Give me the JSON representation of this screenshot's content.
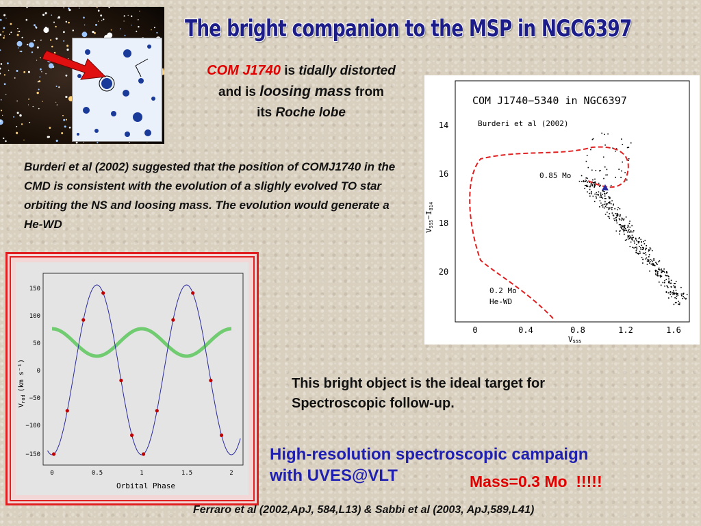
{
  "title": "The bright companion to the MSP in NGC6397",
  "subtitle": {
    "name": "COM J1740",
    "is1": "is",
    "distorted": "tidally distorted",
    "and_is": "and is",
    "loosing": "loosing mass",
    "from": "from",
    "its": "its",
    "lobe": "Roche lobe"
  },
  "paragraph": "Burderi et al (2002) suggested that  the position of  COMJ1740 in the CMD is consistent with the evolution of a slighly evolved TO star orbiting the NS and loosing mass. The evolution would generate a He-WD",
  "cmd_plot": {
    "title": "COM J1740−5340 in NGC6397",
    "reference": "Burderi et al (2002)",
    "label_085": "0.85 Mo",
    "label_02": "0.2 Mo",
    "label_hewd": "He-WD",
    "xlabel": "V",
    "xlabel_sub": "555",
    "ylabel": "V",
    "ylabel_sub1": "555",
    "ylabel_sep": "−I",
    "ylabel_sub2": "814",
    "x_ticks": [
      "0",
      "0.4",
      "0.8",
      "1.2",
      "1.6"
    ],
    "y_ticks": [
      "14",
      "16",
      "18",
      "20"
    ],
    "colors": {
      "track": "#e02020",
      "marker": "#2a2aa0"
    }
  },
  "rv_plot": {
    "xlabel": "Orbital Phase",
    "ylabel": "V",
    "ylabel_sub": "rad",
    "ylabel_unit": "(km s⁻¹)",
    "x_ticks": [
      "0",
      "0.5",
      "1",
      "1.5",
      "2"
    ],
    "y_ticks": [
      "150",
      "100",
      "50",
      "0",
      "−50",
      "−100",
      "−150"
    ],
    "colors": {
      "curve": "#2a2aa0",
      "points": "#c00000",
      "secondary": "#40c040"
    }
  },
  "ideal_target": [
    "This bright object is the ideal target for",
    "Spectroscopic follow-up."
  ],
  "campaign": [
    "High-resolution spectroscopic campaign",
    "with UVES@VLT"
  ],
  "mass": "Mass=0.3 Mo  !!!!!",
  "references": "Ferraro et al (2002,ApJ, 584,L13) & Sabbi et al (2003, ApJ,589,L41)"
}
